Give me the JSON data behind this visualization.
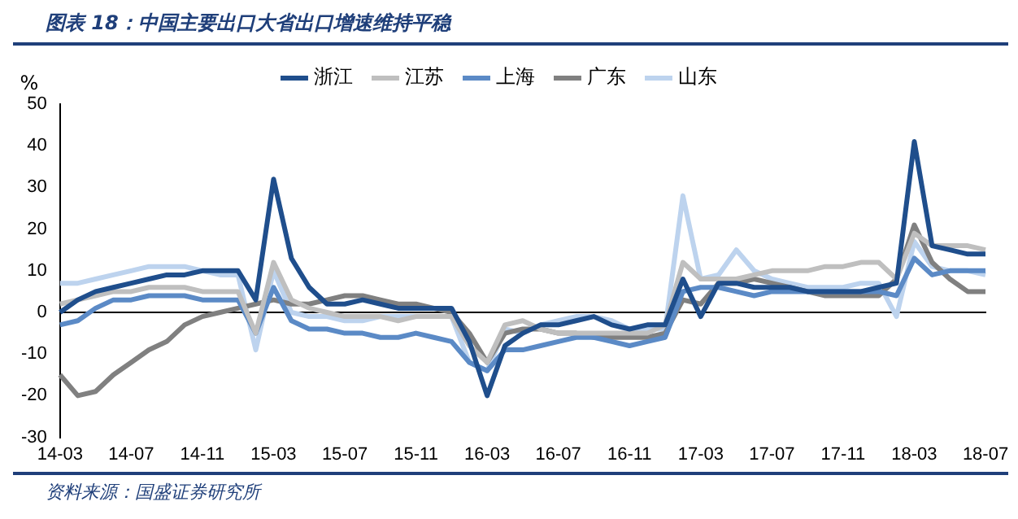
{
  "chart_data": {
    "type": "line",
    "title": "图表 18：中国主要出口大省出口增速维持平稳",
    "ylabel": "%",
    "categories": [
      "14-03",
      null,
      null,
      null,
      "14-07",
      null,
      null,
      null,
      "14-11",
      null,
      null,
      null,
      "15-03",
      null,
      null,
      null,
      "15-07",
      null,
      null,
      null,
      "15-11",
      null,
      null,
      null,
      "16-03",
      null,
      null,
      null,
      "16-07",
      null,
      null,
      null,
      "16-11",
      null,
      null,
      null,
      "17-03",
      null,
      null,
      null,
      "17-07",
      null,
      null,
      null,
      "17-11",
      null,
      null,
      null,
      "18-03",
      null,
      null,
      null,
      "18-07"
    ],
    "series": [
      {
        "name": "浙江",
        "color": "#1f4e8c",
        "values": [
          0,
          3,
          5,
          6,
          7,
          8,
          9,
          9,
          10,
          10,
          10,
          3,
          32,
          13,
          6,
          2,
          2,
          3,
          2,
          1,
          1,
          1,
          1,
          -7,
          -20,
          -8,
          -5,
          -3,
          -3,
          -2,
          -1,
          -3,
          -4,
          -3,
          -3,
          8,
          -1,
          7,
          7,
          6,
          6,
          6,
          5,
          5,
          5,
          5,
          6,
          7,
          41,
          16,
          15,
          14,
          14
        ]
      },
      {
        "name": "江苏",
        "color": "#bfbfbf",
        "values": [
          2,
          3,
          4,
          5,
          5,
          6,
          6,
          6,
          5,
          5,
          5,
          -5,
          12,
          3,
          1,
          0,
          -1,
          -1,
          -1,
          -2,
          -1,
          -1,
          -1,
          -8,
          -12,
          -3,
          -2,
          -4,
          -5,
          -5,
          -5,
          -5,
          -5,
          -5,
          -3,
          12,
          8,
          8,
          8,
          9,
          10,
          10,
          10,
          11,
          11,
          12,
          12,
          8,
          19,
          16,
          16,
          16,
          15
        ]
      },
      {
        "name": "上海",
        "color": "#5b8ac6",
        "values": [
          -3,
          -2,
          1,
          3,
          3,
          4,
          4,
          4,
          3,
          3,
          3,
          -5,
          6,
          -2,
          -4,
          -4,
          -5,
          -5,
          -6,
          -6,
          -5,
          -6,
          -7,
          -12,
          -14,
          -9,
          -9,
          -8,
          -7,
          -6,
          -6,
          -7,
          -8,
          -7,
          -6,
          5,
          6,
          6,
          5,
          4,
          5,
          5,
          5,
          5,
          5,
          5,
          5,
          4,
          13,
          9,
          10,
          10,
          10
        ]
      },
      {
        "name": "广东",
        "color": "#808080",
        "values": [
          -15,
          -20,
          -19,
          -15,
          -12,
          -9,
          -7,
          -3,
          -1,
          0,
          1,
          2,
          3,
          2,
          2,
          3,
          4,
          4,
          3,
          2,
          2,
          1,
          0,
          -5,
          -12,
          -5,
          -4,
          -4,
          -5,
          -5,
          -6,
          -6,
          -6,
          -6,
          -5,
          3,
          2,
          7,
          7,
          8,
          7,
          6,
          5,
          4,
          4,
          4,
          4,
          8,
          21,
          12,
          8,
          5,
          5
        ]
      },
      {
        "name": "山东",
        "color": "#bdd3ee",
        "values": [
          7,
          7,
          8,
          9,
          10,
          11,
          11,
          11,
          10,
          9,
          9,
          -9,
          10,
          0,
          -1,
          -1,
          -2,
          -2,
          -1,
          -1,
          -1,
          -1,
          -1,
          -12,
          -14,
          -4,
          -5,
          -3,
          -2,
          -1,
          -1,
          -2,
          -4,
          -4,
          -4,
          28,
          8,
          9,
          15,
          10,
          8,
          7,
          6,
          6,
          6,
          7,
          7,
          -1,
          17,
          11,
          10,
          10,
          9
        ]
      }
    ],
    "ylim": [
      -30,
      50
    ],
    "yticks": [
      -30,
      -20,
      -10,
      0,
      10,
      20,
      30,
      40,
      50
    ],
    "legend": "top",
    "annotations": [
      "资料来源：国盛证券研究所"
    ]
  }
}
